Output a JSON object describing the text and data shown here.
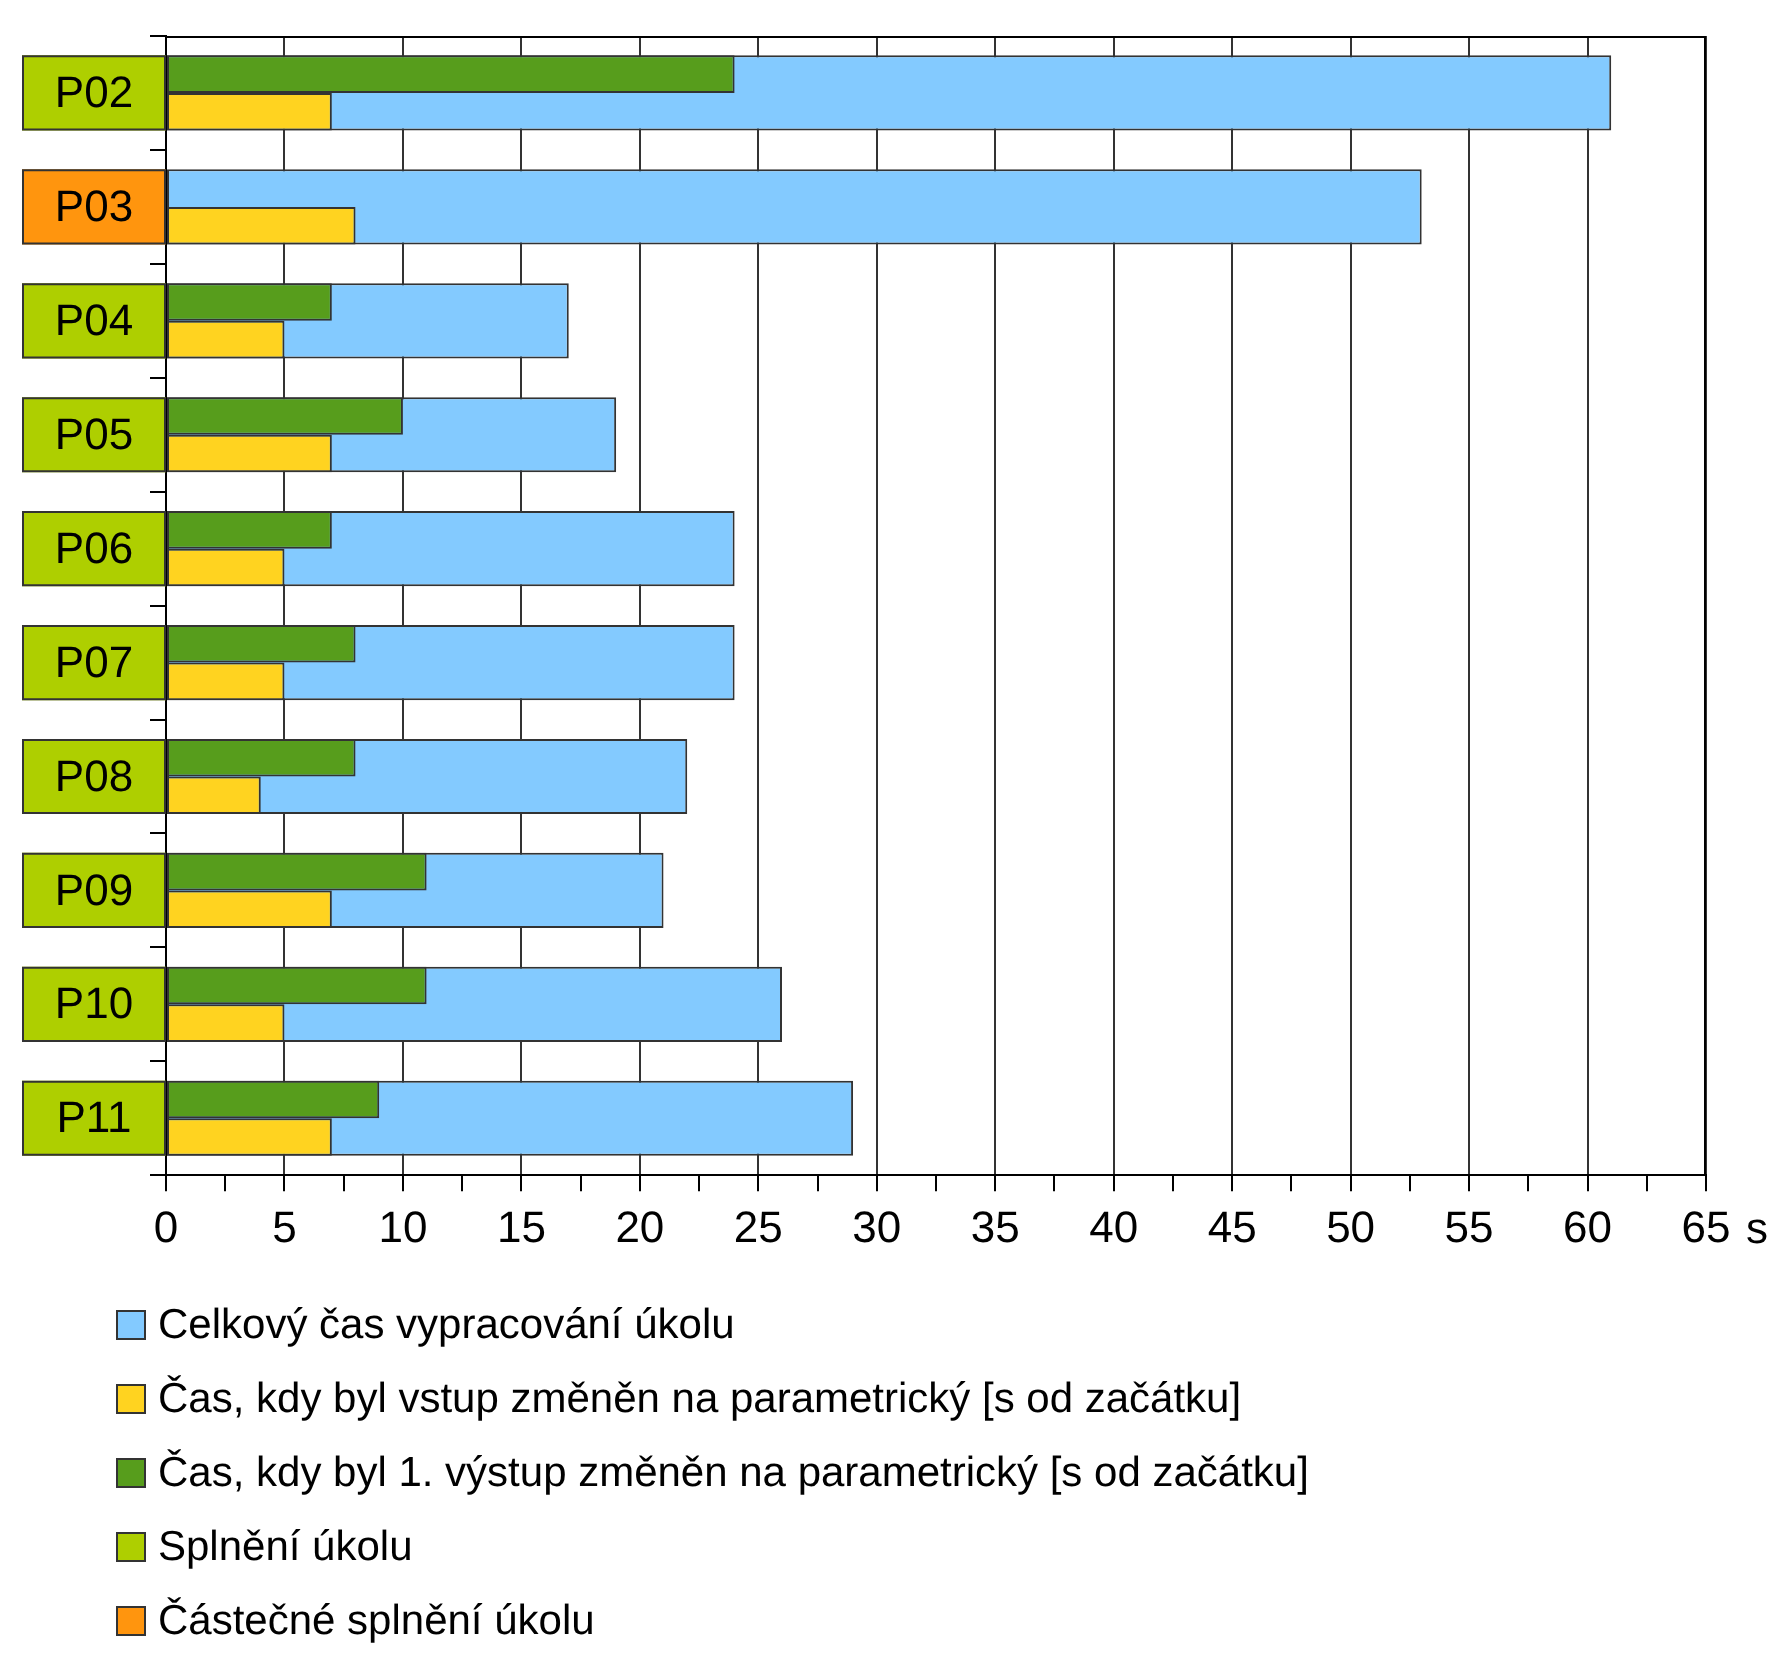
{
  "chart_data": {
    "type": "bar",
    "orientation": "horizontal",
    "xlabel": "s",
    "categories": [
      "P02",
      "P03",
      "P04",
      "P05",
      "P06",
      "P07",
      "P08",
      "P09",
      "P10",
      "P11"
    ],
    "series": [
      {
        "name": "Celkový čas vypracování úkolu",
        "color": "#83caff",
        "values": [
          61,
          53,
          17,
          19,
          24,
          24,
          22,
          21,
          26,
          29
        ]
      },
      {
        "name": "Čas, kdy byl vstup změněn na parametrický [s od začátku]",
        "color": "#ffd320",
        "values": [
          7,
          8,
          5,
          7,
          5,
          5,
          4,
          7,
          5,
          7
        ]
      },
      {
        "name": "Čas, kdy byl 1. výstup změněn na parametrický [s od začátku]",
        "color": "#579d1c",
        "values": [
          24,
          null,
          7,
          10,
          7,
          8,
          8,
          11,
          11,
          9
        ]
      },
      {
        "name": "Splnění úkolu",
        "type": "other",
        "color": "#aecf00",
        "values": [
          true,
          null,
          true,
          true,
          true,
          true,
          true,
          true,
          true,
          true
        ]
      },
      {
        "name": "Částečné splnění úkolu",
        "type": "other",
        "color": "#ff950e",
        "values": [
          null,
          true,
          null,
          null,
          null,
          null,
          null,
          null,
          null,
          null
        ]
      }
    ],
    "xlim": [
      0,
      65
    ],
    "xticks": [
      0,
      {
        "value": 2.5,
        "label": null
      },
      5,
      {
        "value": 7.5,
        "label": null
      },
      10,
      {
        "value": 12.5,
        "label": null
      },
      15,
      {
        "value": 17.5,
        "label": null
      },
      20,
      {
        "value": 22.5,
        "label": null
      },
      25,
      {
        "value": 27.5,
        "label": null
      },
      30,
      {
        "value": 32.5,
        "label": null
      },
      35,
      {
        "value": 37.5,
        "label": null
      },
      40,
      {
        "value": 42.5,
        "label": null
      },
      45,
      {
        "value": 47.5,
        "label": null
      },
      50,
      {
        "value": 52.5,
        "label": null
      },
      55,
      {
        "value": 57.5,
        "label": null
      },
      60,
      {
        "value": 62.5,
        "label": null
      },
      65
    ],
    "grid": "x",
    "legend": "bottom"
  }
}
